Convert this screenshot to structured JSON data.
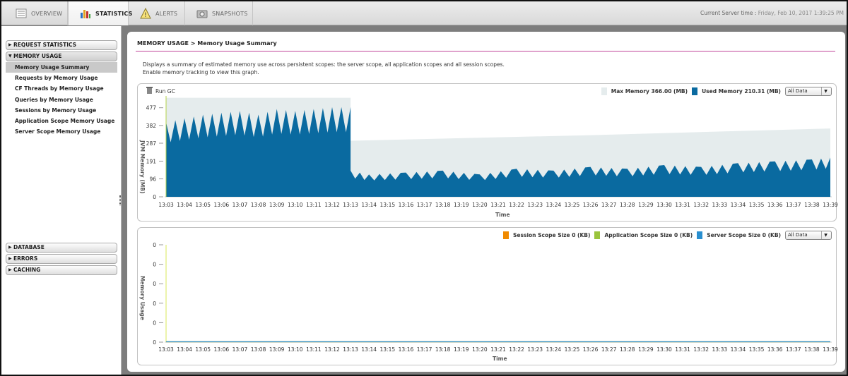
{
  "tabs": [
    {
      "label": "OVERVIEW",
      "icon": "list-icon",
      "active": false
    },
    {
      "label": "STATISTICS",
      "icon": "bar-chart-icon",
      "active": true
    },
    {
      "label": "ALERTS",
      "icon": "warning-icon",
      "active": false
    },
    {
      "label": "SNAPSHOTS",
      "icon": "camera-icon",
      "active": false
    }
  ],
  "server_time": {
    "label": "Current Server time :",
    "value": "Friday, Feb 10, 2017 1:39:25 PM"
  },
  "sidebar": {
    "request_statistics": "REQUEST STATISTICS",
    "memory_usage": "MEMORY USAGE",
    "items": [
      "Memory Usage Summary",
      "Requests by Memory Usage",
      "CF Threads by Memory Usage",
      "Queries by Memory Usage",
      "Sessions by Memory Usage",
      "Application Scope Memory Usage",
      "Server Scope Memory Usage"
    ],
    "database": "DATABASE",
    "errors": "ERRORS",
    "caching": "CACHING"
  },
  "main": {
    "title": "MEMORY USAGE > Memory Usage Summary",
    "desc1": "Displays a summary of estimated memory use across persistent scopes: the server scope, all application scopes and all session scopes.",
    "desc2": "Enable memory tracking to view this graph."
  },
  "colors": {
    "max_memory": "#e5eced",
    "used_memory": "#0a6aa0",
    "session": "#f08a00",
    "application": "#9ac43c",
    "server": "#2a8fd0",
    "title_rule": "#c0469a"
  },
  "chart_data": [
    {
      "type": "area",
      "toolbar": {
        "run_gc": "Run GC"
      },
      "dropdown": "All Data",
      "xlabel": "Time",
      "ylabel": "JVM Memory (MB)",
      "y_ticks": [
        "0",
        "96",
        "191",
        "287",
        "382",
        "477"
      ],
      "ylim": [
        0,
        540
      ],
      "x_ticks": [
        "13:03",
        "13:04",
        "13:05",
        "13:06",
        "13:07",
        "13:08",
        "13:09",
        "13:10",
        "13:11",
        "13:12",
        "13:13",
        "13:14",
        "13:15",
        "13:16",
        "13:17",
        "13:18",
        "13:19",
        "13:20",
        "13:21",
        "13:22",
        "13:23",
        "13:24",
        "13:25",
        "13:26",
        "13:27",
        "13:28",
        "13:29",
        "13:30",
        "13:31",
        "13:32",
        "13:33",
        "13:34",
        "13:35",
        "13:36",
        "13:37",
        "13:38",
        "13:39"
      ],
      "legend": [
        {
          "name": "Max Memory 366.00 (MB)",
          "color": "#e5eced"
        },
        {
          "name": "Used Memory 210.31 (MB)",
          "color": "#0a6aa0"
        }
      ],
      "series": [
        {
          "name": "Max Memory 366.00 (MB)",
          "x": [
            "13:03",
            "13:13",
            "13:13",
            "13:26",
            "13:39"
          ],
          "values": [
            530,
            530,
            300,
            330,
            366
          ]
        },
        {
          "name": "Used Memory 210.31 (MB)",
          "x": [
            "13:03",
            "13:04",
            "13:05",
            "13:06",
            "13:07",
            "13:08",
            "13:09",
            "13:10",
            "13:11",
            "13:12",
            "13:13",
            "13:13",
            "13:14",
            "13:16",
            "13:18",
            "13:20",
            "13:22",
            "13:24",
            "13:26",
            "13:28",
            "13:30",
            "13:32",
            "13:34",
            "13:36",
            "13:38",
            "13:39"
          ],
          "values": [
            400,
            420,
            440,
            450,
            460,
            440,
            470,
            460,
            470,
            480,
            480,
            140,
            120,
            130,
            140,
            120,
            150,
            140,
            160,
            150,
            170,
            160,
            180,
            190,
            200,
            210
          ]
        }
      ]
    },
    {
      "type": "line",
      "dropdown": "All Data",
      "xlabel": "Time",
      "ylabel": "Memory Usage",
      "y_ticks": [
        "0",
        "0",
        "0",
        "0",
        "0",
        "0"
      ],
      "x_ticks": [
        "13:03",
        "13:04",
        "13:05",
        "13:06",
        "13:07",
        "13:08",
        "13:09",
        "13:10",
        "13:11",
        "13:12",
        "13:13",
        "13:14",
        "13:15",
        "13:16",
        "13:17",
        "13:18",
        "13:19",
        "13:20",
        "13:21",
        "13:22",
        "13:23",
        "13:24",
        "13:25",
        "13:26",
        "13:27",
        "13:28",
        "13:29",
        "13:30",
        "13:31",
        "13:32",
        "13:33",
        "13:34",
        "13:35",
        "13:36",
        "13:37",
        "13:38",
        "13:39"
      ],
      "legend": [
        {
          "name": "Session Scope Size 0 (KB)",
          "color": "#f08a00"
        },
        {
          "name": "Application Scope Size 0 (KB)",
          "color": "#9ac43c"
        },
        {
          "name": "Server Scope Size 0 (KB)",
          "color": "#2a8fd0"
        }
      ],
      "series": [
        {
          "name": "Session Scope Size 0 (KB)",
          "values": [
            0
          ]
        },
        {
          "name": "Application Scope Size 0 (KB)",
          "values": [
            0
          ]
        },
        {
          "name": "Server Scope Size 0 (KB)",
          "values": [
            0
          ]
        }
      ]
    }
  ]
}
